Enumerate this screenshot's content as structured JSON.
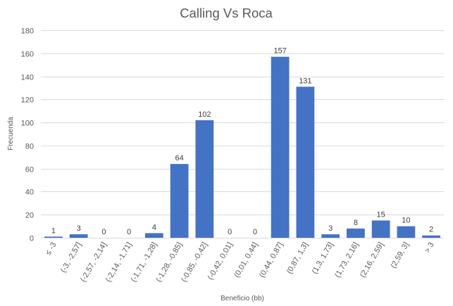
{
  "chart_data": {
    "type": "bar",
    "title": "Calling Vs Roca",
    "xlabel": "Beneficio (bb)",
    "ylabel": "Frecuenda",
    "ylim": [
      0,
      180
    ],
    "yticks": [
      0,
      20,
      40,
      60,
      80,
      100,
      120,
      140,
      160,
      180
    ],
    "grid": true,
    "legend": "none",
    "bar_color": "#4472c4",
    "categories": [
      "≤ -3",
      "(-3, -2,57]",
      "(-2,57, -2,14]",
      "(-2,14, -1,71]",
      "(-1,71, -1,28]",
      "(-1,28, -0,85]",
      "(-0,85, -0,42]",
      "(-0,42, 0,01]",
      "(0,01, 0,44]",
      "(0,44, 0,87]",
      "(0,87, 1,3]",
      "(1,3, 1,73]",
      "(1,73, 2,16]",
      "(2,16, 2,59]",
      "(2,59, 3]",
      "> 3"
    ],
    "values": [
      1,
      3,
      0,
      0,
      4,
      64,
      102,
      0,
      0,
      157,
      131,
      3,
      8,
      15,
      10,
      2
    ]
  }
}
